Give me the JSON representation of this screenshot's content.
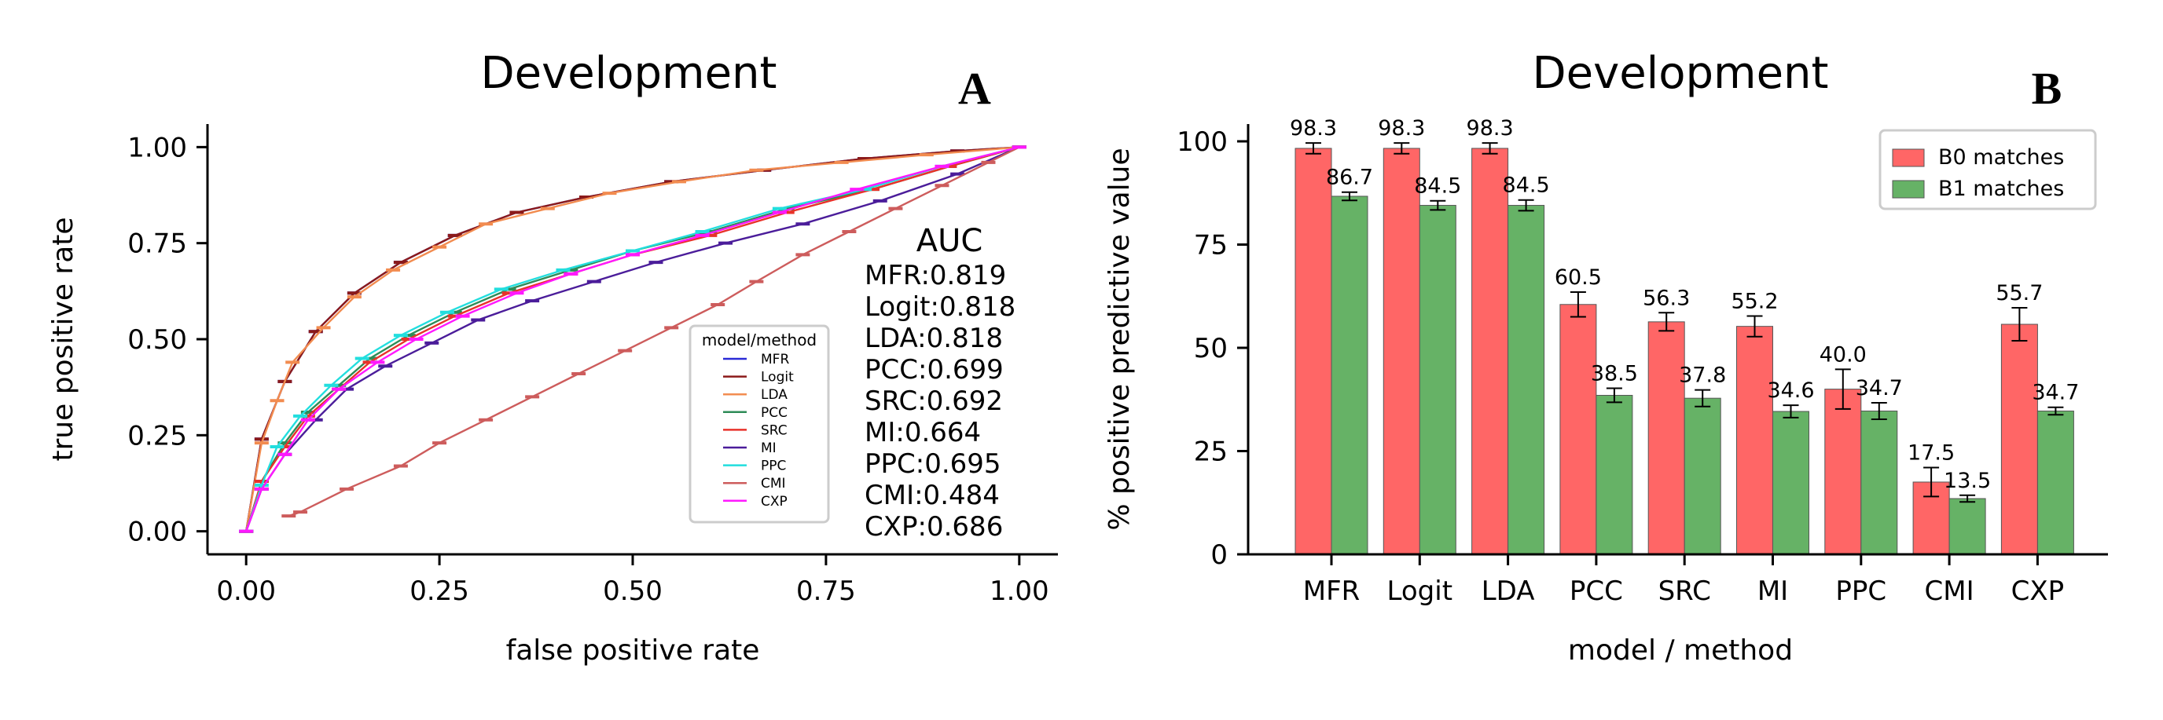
{
  "panels": {
    "A": {
      "letter": "A",
      "auc_title": "AUC",
      "auc_entries": [
        "MFR:0.819",
        "Logit:0.818",
        "LDA:0.818",
        "PCC:0.699",
        "SRC:0.692",
        "MI:0.664",
        "PPC:0.695",
        "CMI:0.484",
        "CXP:0.686"
      ]
    },
    "B": {
      "letter": "B"
    }
  },
  "chart_data": [
    {
      "type": "line",
      "title": "Development",
      "xlabel": "false positive rate",
      "ylabel": "true positive rate",
      "xlim": [
        -0.05,
        1.05
      ],
      "ylim": [
        -0.06,
        1.06
      ],
      "xticks": [
        0,
        0.25,
        0.5,
        0.75,
        1.0
      ],
      "xtick_labels": [
        "0.00",
        "0.25",
        "0.50",
        "0.75",
        "1.00"
      ],
      "yticks": [
        0,
        0.25,
        0.5,
        0.75,
        1.0
      ],
      "ytick_labels": [
        "0.00",
        "0.25",
        "0.50",
        "0.75",
        "1.00"
      ],
      "legend": {
        "title": "model/method",
        "placement": "center-right"
      },
      "series": [
        {
          "name": "MFR",
          "color": "#2a2ad6",
          "x": [
            0,
            0.02,
            0.05,
            0.09,
            0.14,
            0.2,
            0.27,
            0.35,
            0.44,
            0.55,
            0.67,
            0.8,
            0.92,
            1.0
          ],
          "y": [
            0,
            0.24,
            0.39,
            0.52,
            0.62,
            0.7,
            0.77,
            0.83,
            0.87,
            0.91,
            0.94,
            0.97,
            0.99,
            1.0
          ]
        },
        {
          "name": "Logit",
          "color": "#8b1a1a",
          "x": [
            0,
            0.02,
            0.05,
            0.09,
            0.14,
            0.2,
            0.27,
            0.35,
            0.44,
            0.55,
            0.67,
            0.8,
            0.92,
            1.0
          ],
          "y": [
            0,
            0.24,
            0.39,
            0.52,
            0.62,
            0.7,
            0.77,
            0.83,
            0.87,
            0.91,
            0.94,
            0.97,
            0.99,
            1.0
          ]
        },
        {
          "name": "LDA",
          "color": "#f28c50",
          "x": [
            0,
            0.02,
            0.04,
            0.06,
            0.1,
            0.14,
            0.19,
            0.25,
            0.31,
            0.39,
            0.47,
            0.56,
            0.66,
            0.77,
            0.88,
            1.0
          ],
          "y": [
            0,
            0.23,
            0.34,
            0.44,
            0.53,
            0.61,
            0.68,
            0.74,
            0.8,
            0.84,
            0.88,
            0.91,
            0.94,
            0.96,
            0.98,
            1.0
          ]
        },
        {
          "name": "PCC",
          "color": "#2e8b57",
          "x": [
            0,
            0.02,
            0.05,
            0.08,
            0.12,
            0.16,
            0.21,
            0.27,
            0.34,
            0.42,
            0.5,
            0.6,
            0.7,
            0.81,
            0.91,
            1.0
          ],
          "y": [
            0,
            0.13,
            0.23,
            0.31,
            0.38,
            0.45,
            0.51,
            0.57,
            0.63,
            0.68,
            0.73,
            0.78,
            0.84,
            0.89,
            0.95,
            1.0
          ]
        },
        {
          "name": "SRC",
          "color": "#e8322a",
          "x": [
            0,
            0.02,
            0.05,
            0.08,
            0.12,
            0.16,
            0.21,
            0.27,
            0.34,
            0.42,
            0.5,
            0.6,
            0.7,
            0.81,
            0.91,
            1.0
          ],
          "y": [
            0,
            0.13,
            0.22,
            0.3,
            0.37,
            0.44,
            0.5,
            0.56,
            0.62,
            0.67,
            0.72,
            0.77,
            0.83,
            0.89,
            0.95,
            1.0
          ]
        },
        {
          "name": "MI",
          "color": "#4b1d9a",
          "x": [
            0,
            0.02,
            0.05,
            0.09,
            0.13,
            0.18,
            0.24,
            0.3,
            0.37,
            0.45,
            0.53,
            0.62,
            0.72,
            0.82,
            0.92,
            1.0
          ],
          "y": [
            0,
            0.11,
            0.2,
            0.29,
            0.37,
            0.43,
            0.49,
            0.55,
            0.6,
            0.65,
            0.7,
            0.75,
            0.8,
            0.86,
            0.93,
            1.0
          ]
        },
        {
          "name": "PPC",
          "color": "#22dede",
          "x": [
            0,
            0.02,
            0.04,
            0.07,
            0.11,
            0.15,
            0.2,
            0.26,
            0.33,
            0.41,
            0.5,
            0.59,
            0.69,
            0.8,
            0.9,
            1.0
          ],
          "y": [
            0,
            0.12,
            0.22,
            0.3,
            0.38,
            0.45,
            0.51,
            0.57,
            0.63,
            0.68,
            0.73,
            0.78,
            0.84,
            0.89,
            0.95,
            1.0
          ]
        },
        {
          "name": "CMI",
          "color": "#cd5c5c",
          "x": [
            0.055,
            0.07,
            0.13,
            0.2,
            0.25,
            0.31,
            0.37,
            0.43,
            0.49,
            0.55,
            0.61,
            0.66,
            0.72,
            0.78,
            0.84,
            0.9,
            0.96,
            1.0
          ],
          "y": [
            0.04,
            0.05,
            0.11,
            0.17,
            0.23,
            0.29,
            0.35,
            0.41,
            0.47,
            0.53,
            0.59,
            0.65,
            0.72,
            0.78,
            0.84,
            0.9,
            0.96,
            1.0
          ]
        },
        {
          "name": "CXP",
          "color": "#ff18ff",
          "x": [
            0,
            0.02,
            0.05,
            0.08,
            0.12,
            0.17,
            0.22,
            0.28,
            0.35,
            0.42,
            0.5,
            0.59,
            0.69,
            0.79,
            0.9,
            1.0
          ],
          "y": [
            0,
            0.11,
            0.2,
            0.29,
            0.37,
            0.44,
            0.5,
            0.56,
            0.62,
            0.67,
            0.72,
            0.77,
            0.83,
            0.89,
            0.95,
            1.0
          ]
        }
      ]
    },
    {
      "type": "bar",
      "title": "Development",
      "xlabel": "model / method",
      "ylabel": "% positive predictive value",
      "ylim": [
        0,
        100
      ],
      "yticks": [
        0,
        25,
        50,
        75,
        100
      ],
      "categories": [
        "MFR",
        "Logit",
        "LDA",
        "PCC",
        "SRC",
        "MI",
        "PPC",
        "CMI",
        "CXP"
      ],
      "legend": {
        "placement": "top-right"
      },
      "series": [
        {
          "name": "B0 matches",
          "color": "#ff6666",
          "values": [
            98.3,
            98.3,
            98.3,
            60.5,
            56.3,
            55.2,
            40.0,
            17.5,
            55.7
          ],
          "labels": [
            "98.3",
            "98.3",
            "98.3",
            "60.5",
            "56.3",
            "55.2",
            "40.0",
            "17.5",
            "55.7"
          ],
          "errors": [
            1.3,
            1.3,
            1.3,
            3.0,
            2.2,
            2.5,
            4.8,
            3.5,
            4.0
          ]
        },
        {
          "name": "B1 matches",
          "color": "#66b266",
          "values": [
            86.7,
            84.5,
            84.5,
            38.5,
            37.8,
            34.6,
            34.7,
            13.5,
            34.7
          ],
          "labels": [
            "86.7",
            "84.5",
            "84.5",
            "38.5",
            "37.8",
            "34.6",
            "34.7",
            "13.5",
            "34.7"
          ],
          "errors": [
            1.0,
            1.1,
            1.3,
            1.7,
            2.0,
            1.5,
            2.0,
            0.8,
            0.9
          ]
        }
      ]
    }
  ]
}
